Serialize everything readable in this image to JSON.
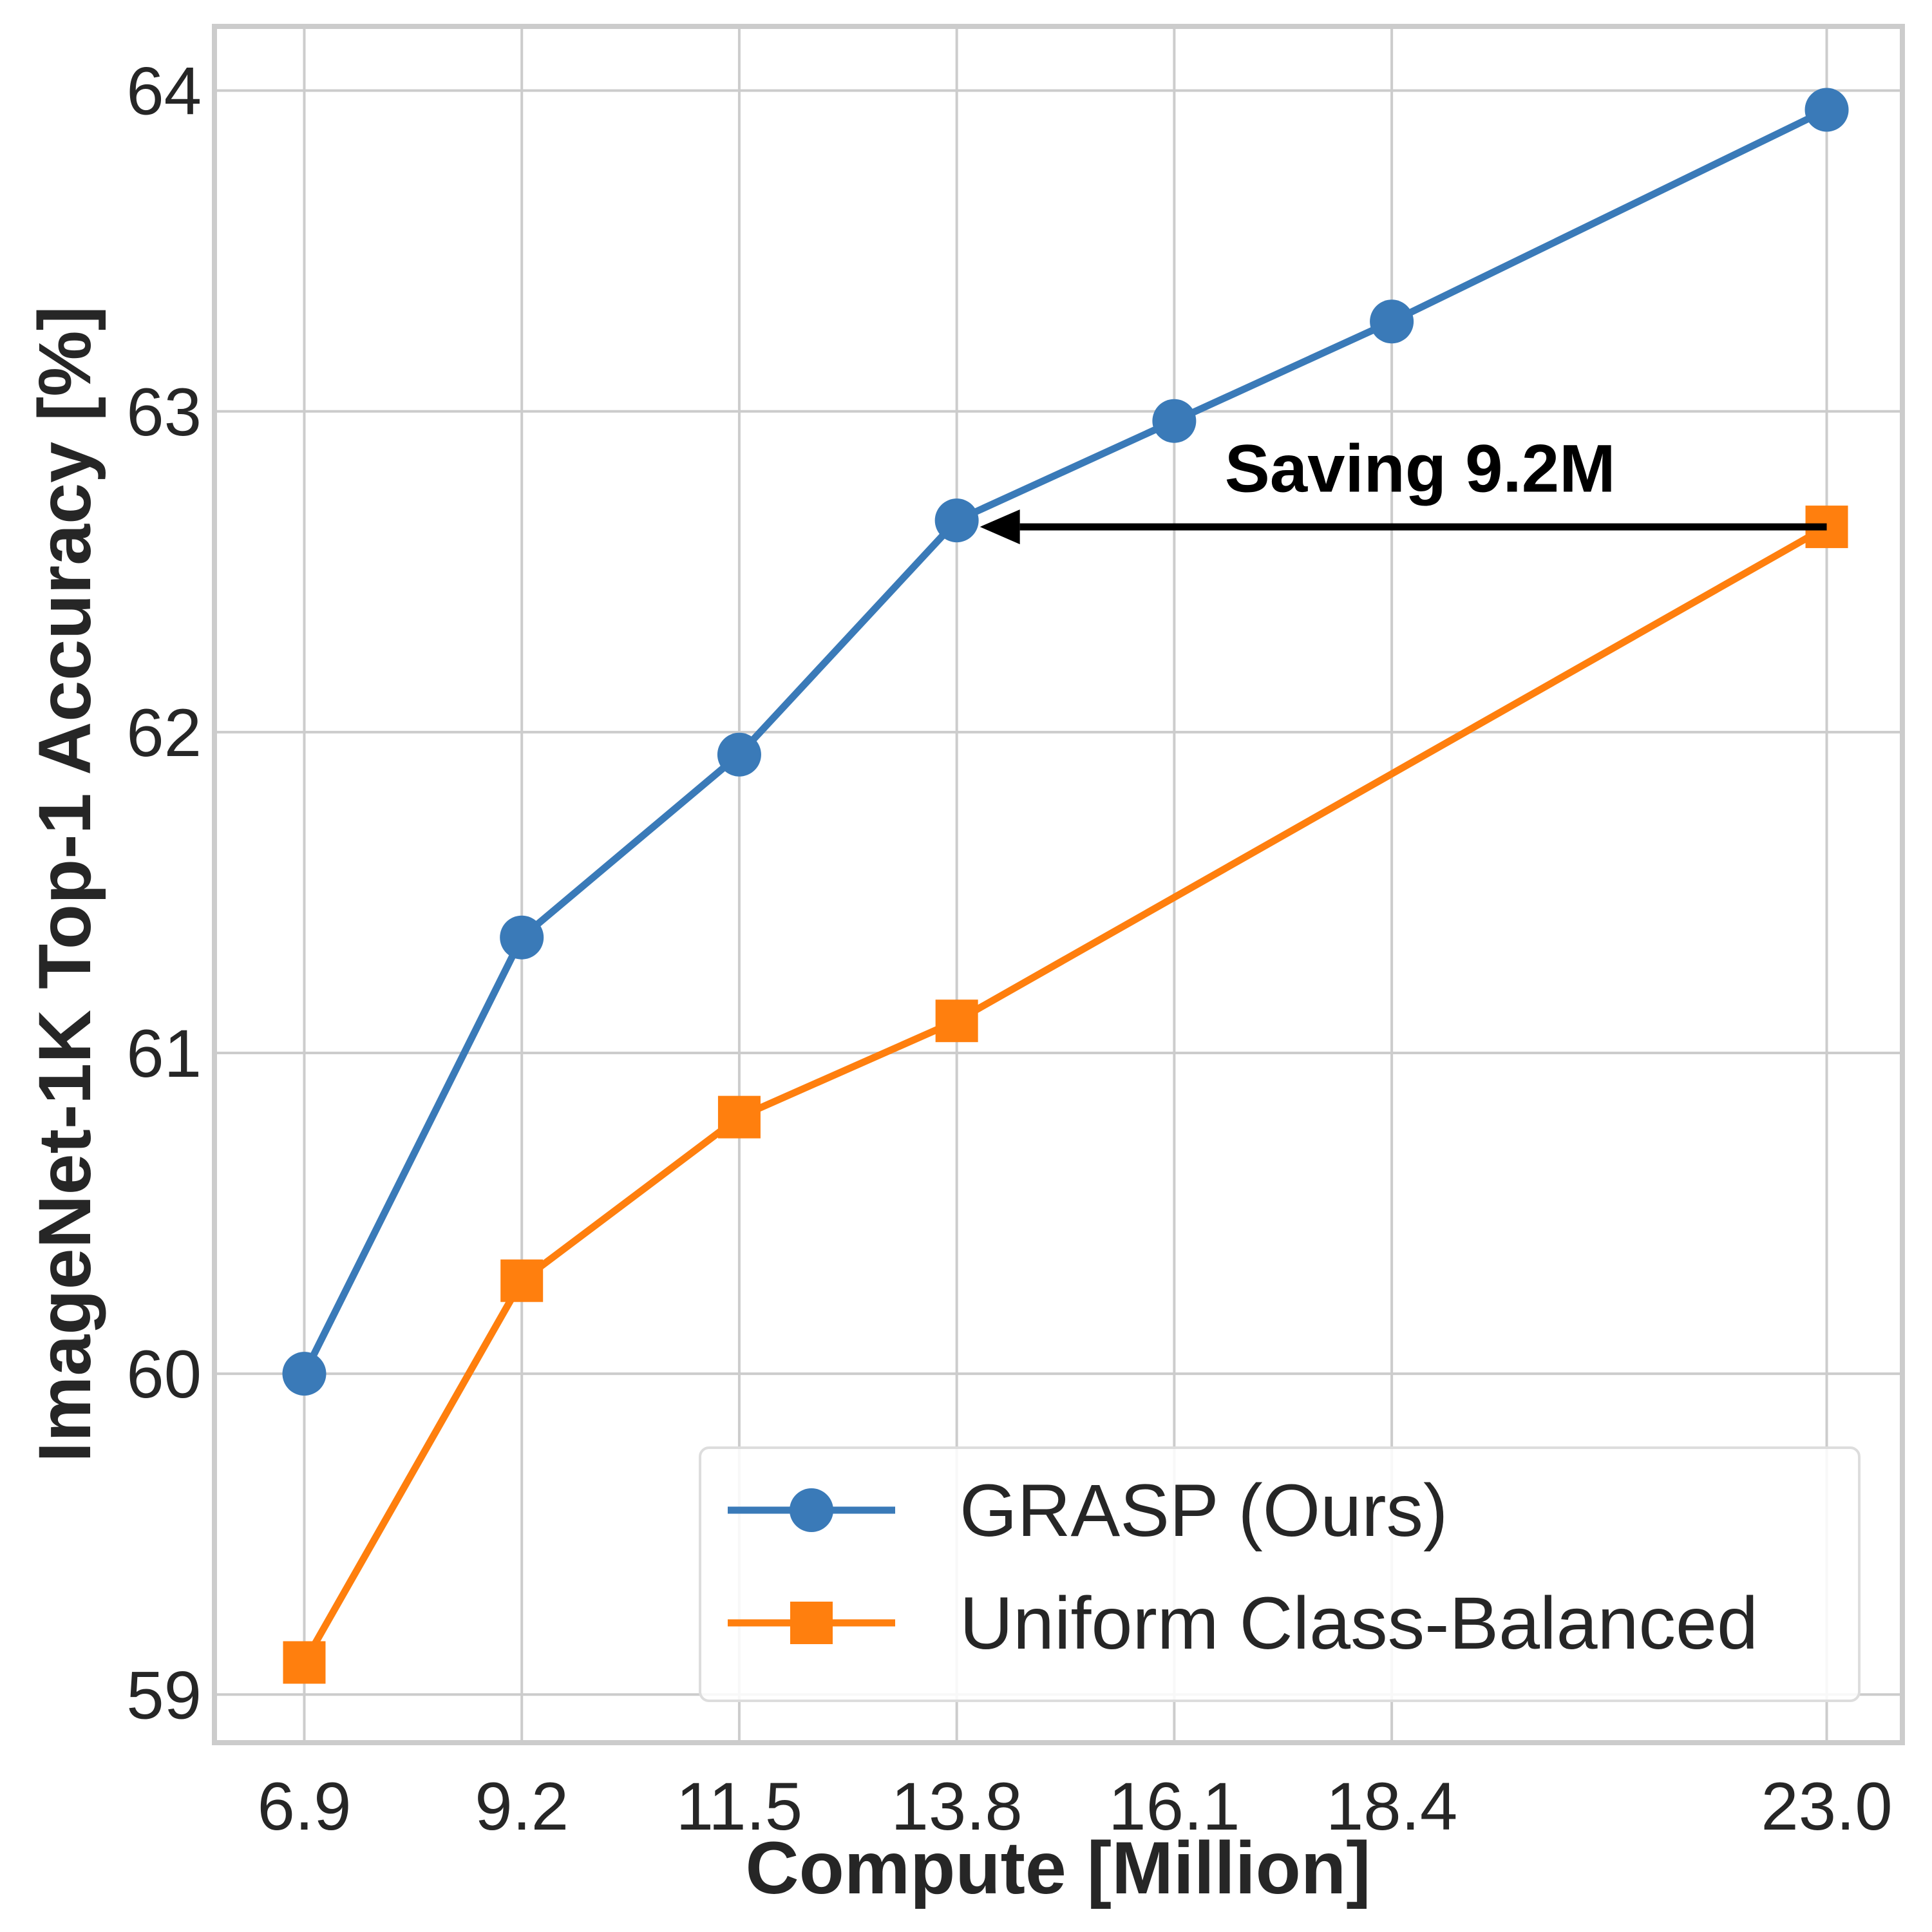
{
  "chart_data": {
    "type": "line",
    "title": "",
    "xlabel": "Compute [Million]",
    "ylabel": "ImageNet-1K Top-1 Accuracy [%]",
    "x": [
      6.9,
      9.2,
      11.5,
      13.8,
      16.1,
      18.4,
      23.0
    ],
    "xticks": [
      "6.9",
      "9.2",
      "11.5",
      "13.8",
      "16.1",
      "18.4",
      "23.0"
    ],
    "yticks": [
      59,
      60,
      61,
      62,
      63,
      64
    ],
    "ytick_labels": [
      "59",
      "60",
      "61",
      "62",
      "63",
      "64"
    ],
    "xlim": [
      5.95,
      23.8
    ],
    "ylim": [
      58.85,
      64.2
    ],
    "grid": true,
    "legend_position": "lower-right",
    "series": [
      {
        "name": "GRASP (Ours)",
        "color": "#3a7ab8",
        "marker": "circle",
        "x": [
          6.9,
          9.2,
          11.5,
          13.8,
          16.1,
          18.4,
          23.0
        ],
        "values": [
          60.0,
          61.36,
          61.93,
          62.66,
          62.97,
          63.28,
          63.94
        ]
      },
      {
        "name": "Uniform Class-Balanced",
        "color": "#ff7f0e",
        "marker": "square",
        "x": [
          6.9,
          9.2,
          11.5,
          13.8,
          23.0
        ],
        "values": [
          59.1,
          60.29,
          60.8,
          61.1,
          62.64
        ]
      }
    ],
    "annotations": [
      {
        "text": "Saving 9.2M",
        "arrow_from": [
          23.0,
          62.64
        ],
        "arrow_to": [
          13.8,
          62.64
        ],
        "text_at": [
          18.7,
          62.75
        ]
      }
    ]
  }
}
